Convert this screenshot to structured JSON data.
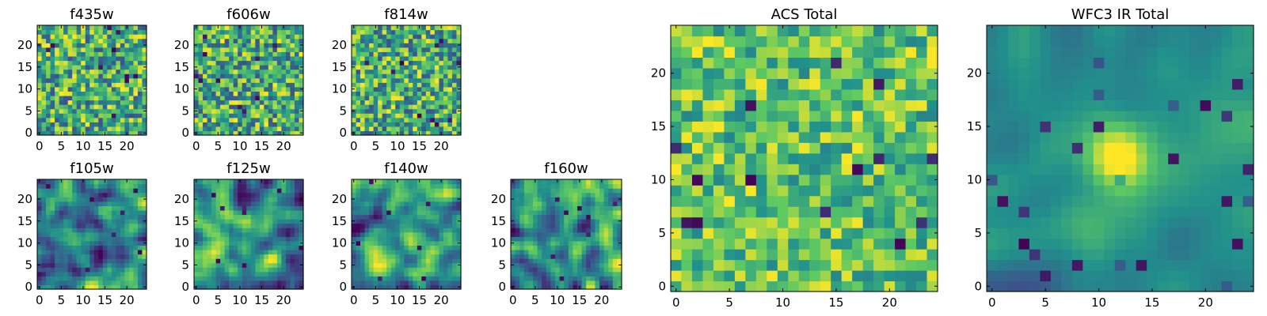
{
  "figure": {
    "colormap": "viridis",
    "colormap_stops": [
      "#440154",
      "#3b528b",
      "#21918c",
      "#5ec962",
      "#fde725"
    ],
    "background": "#ffffff"
  },
  "chart_data": [
    {
      "type": "heatmap",
      "title": "f435w",
      "pattern": "noise",
      "seed": 11,
      "grid": [
        25,
        25
      ],
      "xlim": [
        0,
        24
      ],
      "ylim": [
        0,
        24
      ],
      "xticks": [
        0,
        5,
        10,
        15,
        20
      ],
      "yticks": [
        0,
        5,
        10,
        15,
        20
      ]
    },
    {
      "type": "heatmap",
      "title": "f606w",
      "pattern": "noise",
      "seed": 23,
      "grid": [
        25,
        25
      ],
      "xlim": [
        0,
        24
      ],
      "ylim": [
        0,
        24
      ],
      "xticks": [
        0,
        5,
        10,
        15,
        20
      ],
      "yticks": [
        0,
        5,
        10,
        15,
        20
      ]
    },
    {
      "type": "heatmap",
      "title": "f814w",
      "pattern": "noise",
      "seed": 37,
      "grid": [
        25,
        25
      ],
      "xlim": [
        0,
        24
      ],
      "ylim": [
        0,
        24
      ],
      "xticks": [
        0,
        5,
        10,
        15,
        20
      ],
      "yticks": [
        0,
        5,
        10,
        15,
        20
      ]
    },
    {
      "type": "heatmap",
      "title": "f105w",
      "pattern": "smooth",
      "seed": 41,
      "grid": [
        25,
        25
      ],
      "xlim": [
        0,
        24
      ],
      "ylim": [
        0,
        24
      ],
      "xticks": [
        0,
        5,
        10,
        15,
        20
      ],
      "yticks": [
        0,
        5,
        10,
        15,
        20
      ]
    },
    {
      "type": "heatmap",
      "title": "f125w",
      "pattern": "smooth",
      "seed": 53,
      "grid": [
        25,
        25
      ],
      "xlim": [
        0,
        24
      ],
      "ylim": [
        0,
        24
      ],
      "xticks": [
        0,
        5,
        10,
        15,
        20
      ],
      "yticks": [
        0,
        5,
        10,
        15,
        20
      ]
    },
    {
      "type": "heatmap",
      "title": "f140w",
      "pattern": "smooth",
      "seed": 67,
      "grid": [
        25,
        25
      ],
      "xlim": [
        0,
        24
      ],
      "ylim": [
        0,
        24
      ],
      "xticks": [
        0,
        5,
        10,
        15,
        20
      ],
      "yticks": [
        0,
        5,
        10,
        15,
        20
      ]
    },
    {
      "type": "heatmap",
      "title": "f160w",
      "pattern": "smooth",
      "seed": 79,
      "grid": [
        25,
        25
      ],
      "xlim": [
        0,
        24
      ],
      "ylim": [
        0,
        24
      ],
      "xticks": [
        0,
        5,
        10,
        15,
        20
      ],
      "yticks": [
        0,
        5,
        10,
        15,
        20
      ]
    },
    {
      "type": "heatmap",
      "title": "ACS Total",
      "pattern": "noise-bright",
      "seed": 83,
      "grid": [
        25,
        25
      ],
      "xlim": [
        0,
        24
      ],
      "ylim": [
        0,
        24
      ],
      "xticks": [
        0,
        5,
        10,
        15,
        20
      ],
      "yticks": [
        0,
        5,
        10,
        15,
        20
      ]
    },
    {
      "type": "heatmap",
      "title": "WFC3 IR Total",
      "pattern": "source",
      "seed": 97,
      "grid": [
        25,
        25
      ],
      "xlim": [
        0,
        24
      ],
      "ylim": [
        0,
        24
      ],
      "xticks": [
        0,
        5,
        10,
        15,
        20
      ],
      "yticks": [
        0,
        5,
        10,
        15,
        20
      ],
      "source_center": [
        12,
        12
      ],
      "note": "bright compact source near center"
    }
  ]
}
